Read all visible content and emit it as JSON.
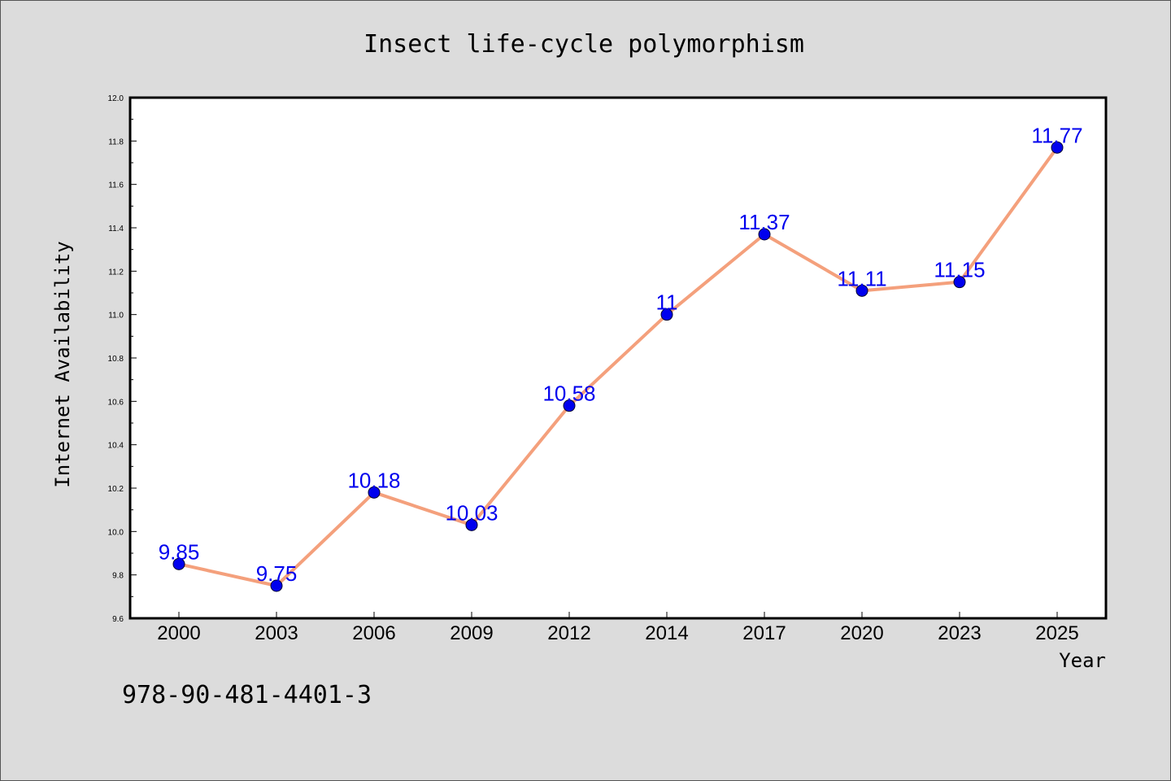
{
  "figure": {
    "background": "#dcdcdc",
    "footer_text": "978-90-481-4401-3"
  },
  "chart_data": {
    "type": "line",
    "title": "Insect life-cycle polymorphism",
    "xlabel": "Year",
    "ylabel": "Internet Availability",
    "categories": [
      "2000",
      "2003",
      "2006",
      "2009",
      "2012",
      "2014",
      "2017",
      "2020",
      "2023",
      "2025"
    ],
    "series": [
      {
        "values": [
          9.85,
          9.75,
          10.18,
          10.03,
          10.58,
          11.0,
          11.37,
          11.11,
          11.15,
          11.77
        ],
        "value_labels": [
          "9.85",
          "9.75",
          "10.18",
          "10.03",
          "10.58",
          "11",
          "11.37",
          "11.11",
          "11.15",
          "11.77"
        ],
        "line_color": "#f4a07c",
        "marker_color": "#0000ee",
        "label_color": "#0000ee"
      }
    ],
    "ylim": [
      9.6,
      12.0
    ],
    "yticks": [
      "9.6",
      "9.8",
      "10.0",
      "10.2",
      "10.4",
      "10.6",
      "10.8",
      "11.0",
      "11.2",
      "11.4",
      "11.6",
      "11.8",
      "12.0"
    ],
    "grid": false,
    "legend": "none"
  }
}
